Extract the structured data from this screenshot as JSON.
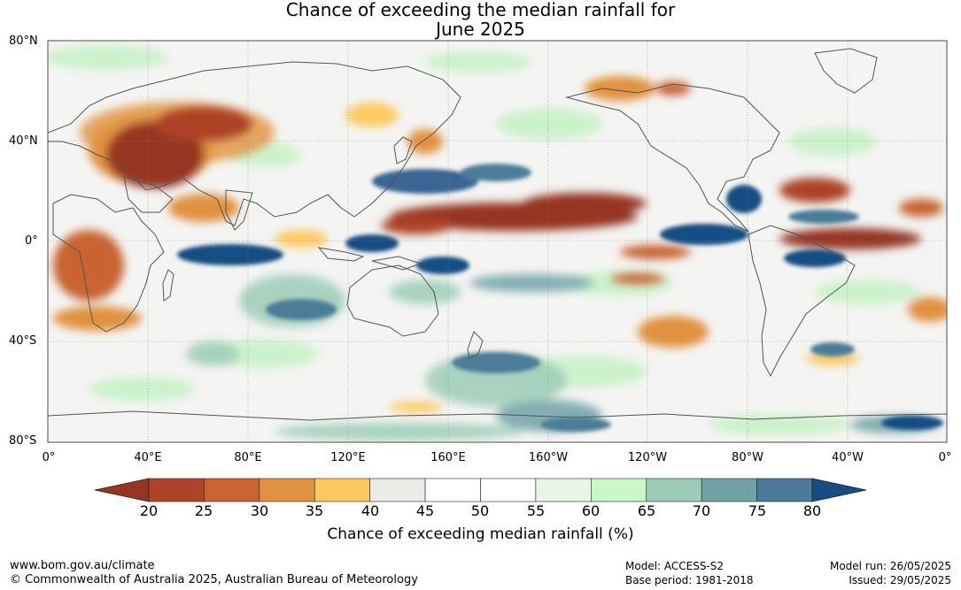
{
  "title": {
    "line1": "Chance of exceeding the median rainfall for",
    "line2": "June 2025"
  },
  "lat_labels": [
    "80°N",
    "40°N",
    "0°",
    "40°S",
    "80°S"
  ],
  "lon_labels": [
    "0°",
    "40°E",
    "80°E",
    "120°E",
    "160°E",
    "160°W",
    "120°W",
    "80°W",
    "40°W",
    "0°"
  ],
  "colorbar": {
    "title": "Chance of exceeding median rainfall (%)",
    "ticks": [
      "20",
      "25",
      "30",
      "35",
      "40",
      "45",
      "50",
      "55",
      "60",
      "65",
      "70",
      "75",
      "80"
    ],
    "under_color": "#953522",
    "over_color": "#174d83",
    "colors": [
      "#ae4327",
      "#c96330",
      "#e19240",
      "#fdca62",
      "#ebebe7",
      "#ffffff",
      "#ffffff",
      "#e8f5e8",
      "#c8f7c8",
      "#9ccdb8",
      "#6fa3a8",
      "#4b7b98"
    ]
  },
  "footer": {
    "website": "www.bom.gov.au/climate",
    "copyright": "© Commonwealth of Australia 2025, Australian Bureau of Meteorology",
    "model": "Model: ACCESS-S2",
    "base_period": "Base period: 1981-2018",
    "model_run": "Model run: 26/05/2025",
    "issued": "Issued: 29/05/2025"
  }
}
